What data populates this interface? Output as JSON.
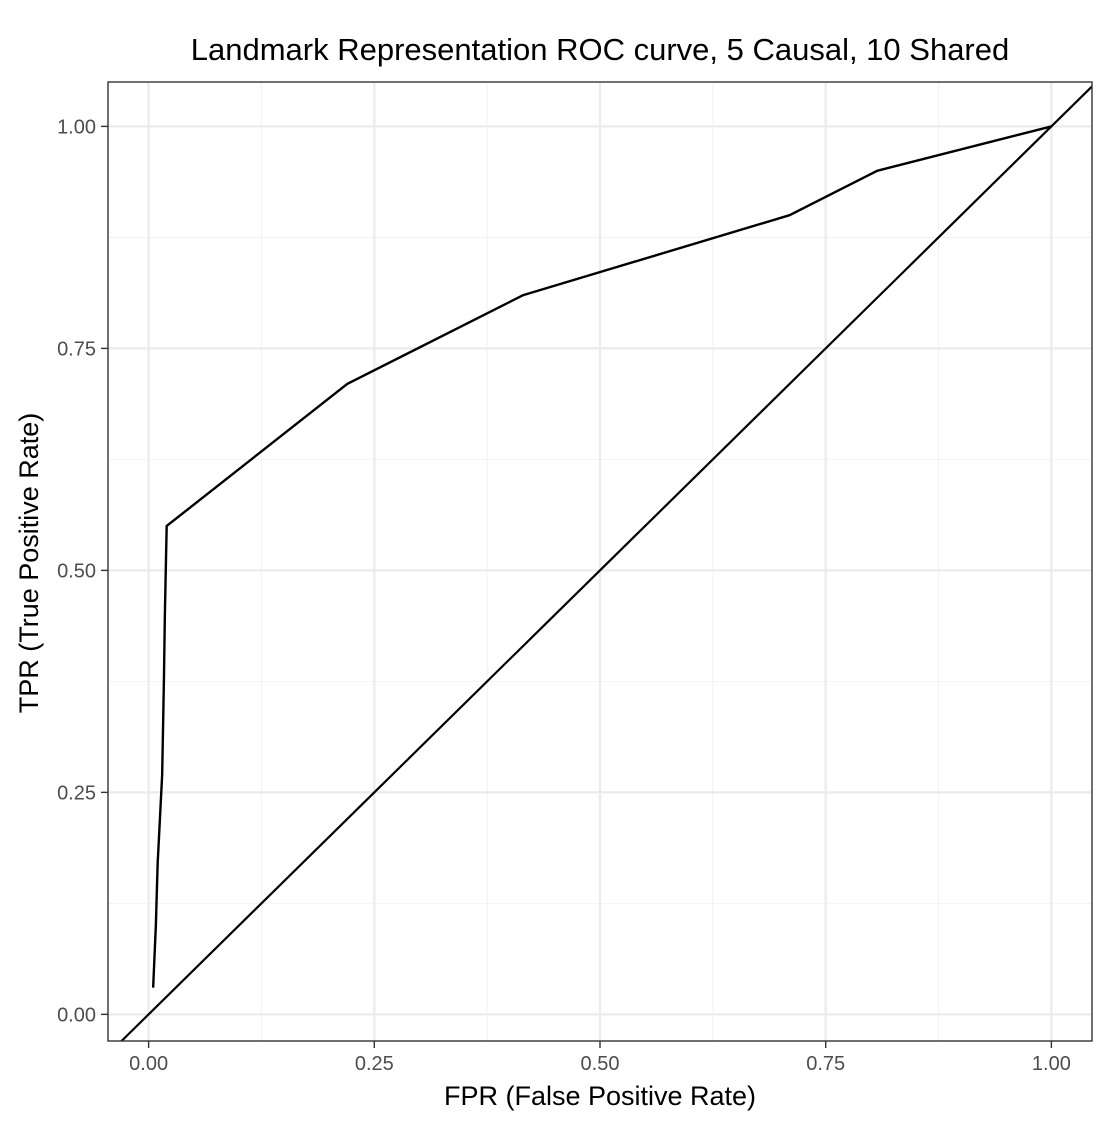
{
  "chart_data": {
    "type": "line",
    "title": "Landmark Representation ROC curve, 5 Causal, 10 Shared",
    "xlabel": "FPR (False Positive Rate)",
    "ylabel": "TPR (True Positive Rate)",
    "xlim": [
      -0.045,
      1.045
    ],
    "ylim": [
      -0.03,
      1.05
    ],
    "x_ticks": [
      0.0,
      0.25,
      0.5,
      0.75,
      1.0
    ],
    "x_tick_labels": [
      "0.00",
      "0.25",
      "0.50",
      "0.75",
      "1.00"
    ],
    "y_ticks": [
      0.0,
      0.25,
      0.5,
      0.75,
      1.0
    ],
    "y_tick_labels": [
      "0.00",
      "0.25",
      "0.50",
      "0.75",
      "1.00"
    ],
    "grid": true,
    "legend": "none",
    "series": [
      {
        "x": [
          0.005,
          0.008,
          0.01,
          0.012,
          0.015,
          0.017,
          0.018,
          0.02,
          0.22,
          0.415,
          0.71,
          0.807,
          1.0
        ],
        "y": [
          0.03,
          0.1,
          0.17,
          0.21,
          0.27,
          0.38,
          0.45,
          0.55,
          0.71,
          0.81,
          0.9,
          0.95,
          1.0
        ],
        "color": "#000000"
      }
    ],
    "reference_line": {
      "type": "abline",
      "slope": 1,
      "intercept": 0,
      "color": "#000000"
    }
  }
}
